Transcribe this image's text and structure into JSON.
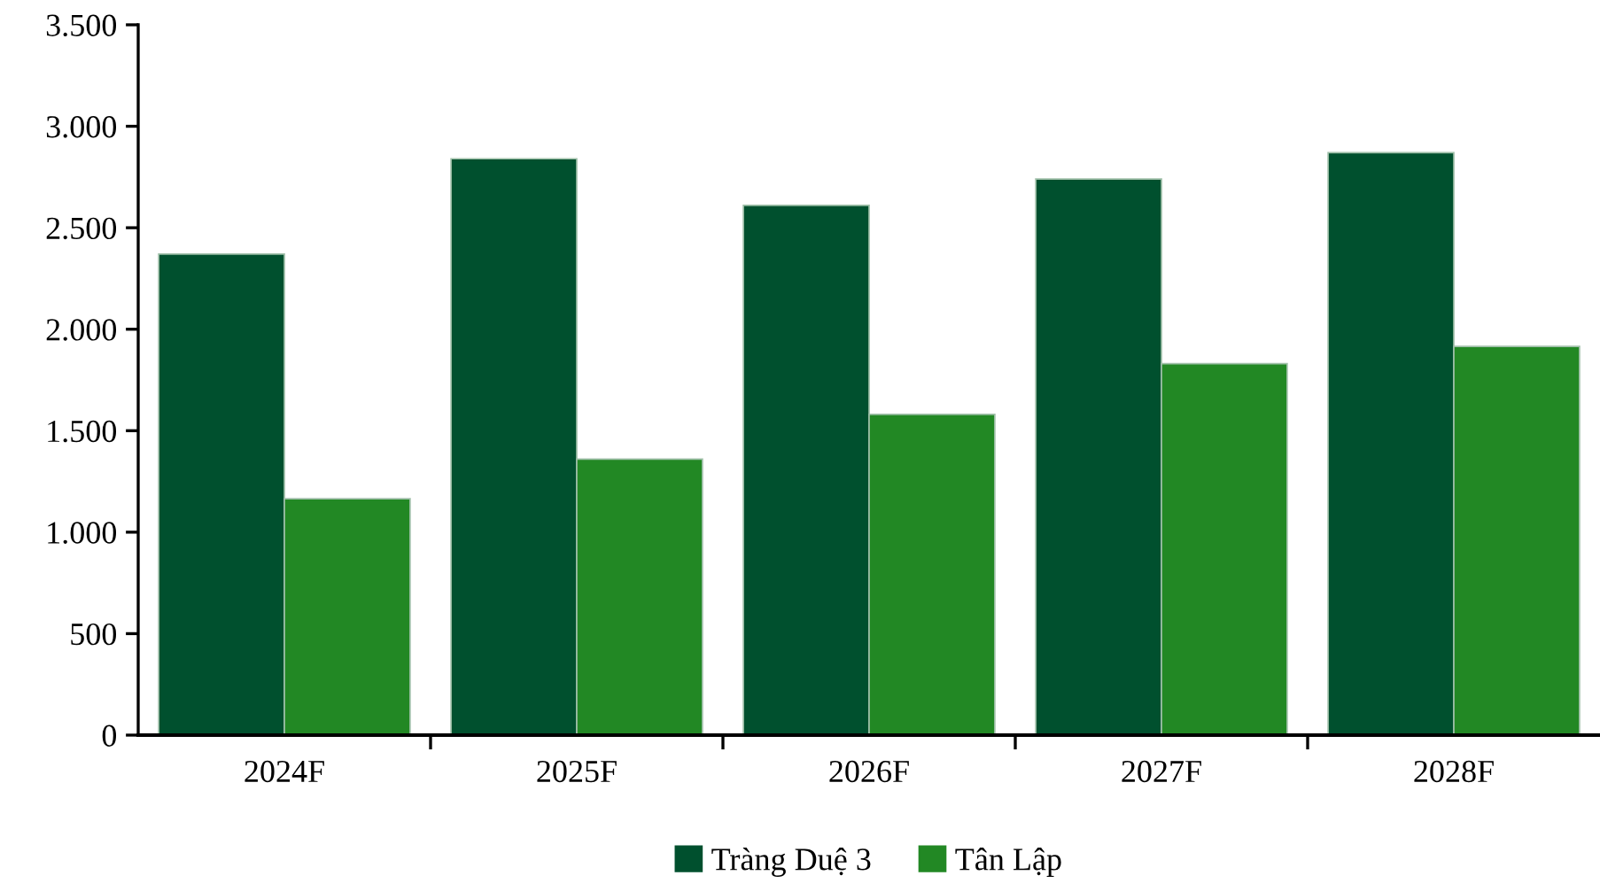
{
  "chart_data": {
    "type": "bar",
    "categories": [
      "2024F",
      "2025F",
      "2026F",
      "2027F",
      "2028F"
    ],
    "series": [
      {
        "name": "Tràng Duệ 3",
        "color": "#00502e",
        "values": [
          2370,
          2840,
          2610,
          2740,
          2870
        ]
      },
      {
        "name": "Tân Lập",
        "color": "#228824",
        "values": [
          1165,
          1360,
          1580,
          1830,
          1915
        ]
      }
    ],
    "ylim": [
      0,
      3500
    ],
    "yticks": [
      {
        "value": 0,
        "label": "0"
      },
      {
        "value": 500,
        "label": "500"
      },
      {
        "value": 1000,
        "label": "1.000"
      },
      {
        "value": 1500,
        "label": "1.500"
      },
      {
        "value": 2000,
        "label": "2.000"
      },
      {
        "value": 2500,
        "label": "2.500"
      },
      {
        "value": 3000,
        "label": "3.000"
      },
      {
        "value": 3500,
        "label": "3.500"
      }
    ],
    "grid": false,
    "legend": "bottom"
  }
}
